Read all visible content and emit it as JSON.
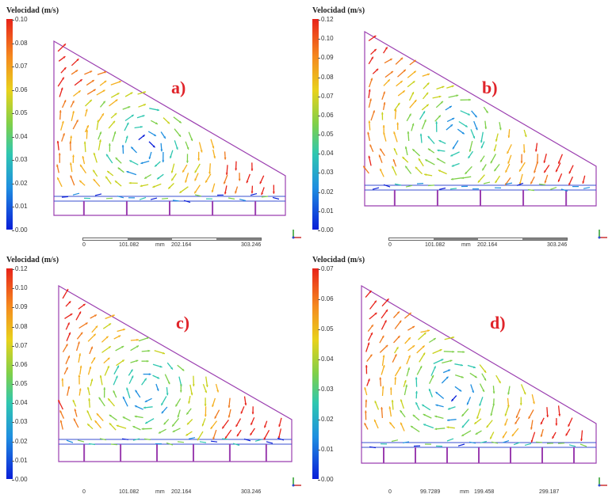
{
  "panels": [
    {
      "legend_title": "Velocidad (m/s)",
      "label": "a)",
      "ticks": [
        "0.10",
        "0.08",
        "0.07",
        "0.06",
        "0.05",
        "0.04",
        "0.03",
        "0.02",
        "0.01",
        "0.00"
      ],
      "scale": [
        "0",
        "101.082",
        "mm",
        "202.164",
        "303.246"
      ],
      "fins": 5
    },
    {
      "legend_title": "Velocidad (m/s)",
      "label": "b)",
      "ticks": [
        "0.12",
        "0.10",
        "0.09",
        "0.08",
        "0.07",
        "0.06",
        "0.05",
        "0.04",
        "0.03",
        "0.02",
        "0.01",
        "0.00"
      ],
      "scale": [
        "0",
        "101.082",
        "mm",
        "202.164",
        "303.246"
      ],
      "fins": 5
    },
    {
      "legend_title": "Velocidad (m/s)",
      "label": "c)",
      "ticks": [
        "0.12",
        "0.10",
        "0.09",
        "0.08",
        "0.07",
        "0.06",
        "0.05",
        "0.04",
        "0.03",
        "0.02",
        "0.01",
        "0.00"
      ],
      "scale": [
        "0",
        "101.082",
        "mm",
        "202.164",
        "303.246"
      ],
      "fins": 6
    },
    {
      "legend_title": "Velocidad (m/s)",
      "label": "d)",
      "ticks": [
        "0.07",
        "0.06",
        "0.05",
        "0.04",
        "0.03",
        "0.02",
        "0.01",
        "0.00"
      ],
      "scale": [
        "0",
        "99.7289",
        "mm",
        "199.458",
        "299.187"
      ],
      "fins": 7
    }
  ],
  "colors": {
    "outline": "#9b3fb0",
    "channel": "#3a4fd1",
    "label": "#e0242a"
  }
}
